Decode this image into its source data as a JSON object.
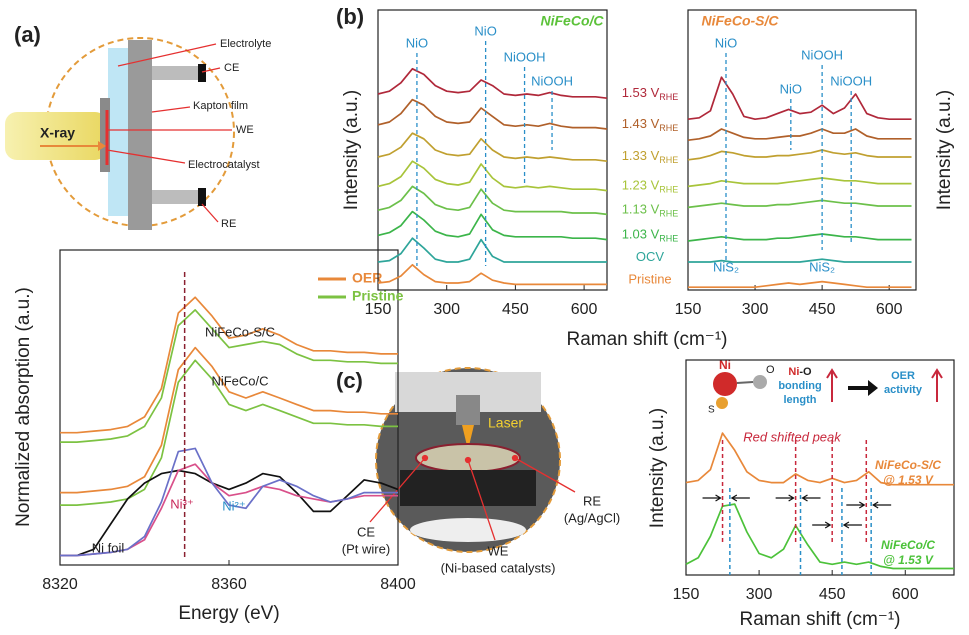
{
  "panels": [
    "(a)",
    "(b)",
    "(c)"
  ],
  "setup_a": [
    "Electrolyte",
    "CE",
    "Kapton film",
    "WE",
    "Electrocatalyst",
    "RE",
    "X-ray"
  ],
  "setup_c": [
    "Laser",
    "CE",
    "(Pt wire)",
    "WE",
    "(Ni-based catalysts)",
    "RE",
    "(Ag/AgCl)"
  ],
  "scheme_c": [
    "Ni",
    "O",
    "S",
    "Ni",
    "-O",
    "bonding",
    "length",
    "OER",
    "activity"
  ],
  "chart_data": [
    {
      "type": "line",
      "x_label": "Energy (eV)",
      "y_label": "Normalized absorption (a.u.)",
      "x": [
        8320,
        8324,
        8328,
        8332,
        8336,
        8340,
        8344,
        8348,
        8352,
        8356,
        8360,
        8364,
        8368,
        8372,
        8376,
        8380,
        8384,
        8388,
        8392,
        8396,
        8400
      ],
      "xlim": [
        8320,
        8400
      ],
      "xticks": [
        8320,
        8360,
        8400
      ],
      "ylim": [
        0,
        10
      ],
      "legend": [
        {
          "name": "OER",
          "color": "#e8883a"
        },
        {
          "name": "Pristine",
          "color": "#7cc242"
        }
      ],
      "reference_lines": [
        8349.5
      ],
      "series": [
        {
          "color": "#e8883a",
          "values": [
            4.2,
            4.2,
            4.25,
            4.3,
            4.4,
            4.7,
            5.6,
            8.0,
            8.5,
            7.9,
            7.2,
            7.3,
            7.5,
            7.3,
            7.0,
            6.8,
            6.8,
            6.75,
            6.75,
            6.7,
            6.7
          ]
        },
        {
          "color": "#7cc242",
          "values": [
            3.9,
            3.9,
            3.95,
            4.0,
            4.1,
            4.4,
            5.3,
            7.6,
            8.1,
            7.5,
            6.9,
            7.0,
            7.1,
            7.0,
            6.7,
            6.5,
            6.5,
            6.45,
            6.45,
            6.4,
            6.4
          ]
        },
        {
          "color": "#e8883a",
          "values": [
            2.3,
            2.3,
            2.35,
            2.4,
            2.5,
            2.8,
            3.8,
            6.2,
            6.9,
            6.3,
            5.5,
            5.3,
            5.5,
            5.3,
            5.1,
            4.9,
            4.9,
            4.85,
            4.85,
            4.8,
            4.8
          ]
        },
        {
          "color": "#7cc242",
          "values": [
            1.9,
            1.9,
            1.95,
            2.0,
            2.1,
            2.4,
            3.4,
            5.8,
            6.5,
            5.9,
            5.1,
            4.9,
            5.1,
            4.9,
            4.7,
            4.5,
            4.5,
            4.45,
            4.45,
            4.4,
            4.4
          ]
        },
        {
          "color": "#111111",
          "values": [
            0.3,
            0.3,
            0.5,
            1.3,
            2.1,
            2.6,
            2.9,
            3.0,
            2.9,
            2.6,
            2.4,
            2.6,
            2.9,
            2.8,
            2.3,
            1.7,
            1.7,
            2.2,
            2.7,
            2.6,
            2.4
          ]
        },
        {
          "color": "#d9508a",
          "values": [
            0.3,
            0.3,
            0.35,
            0.4,
            0.5,
            0.8,
            1.8,
            3.0,
            3.2,
            2.6,
            2.2,
            2.3,
            2.5,
            2.4,
            2.2,
            2.1,
            2.0,
            2.1,
            2.2,
            2.2,
            2.2
          ]
        },
        {
          "color": "#6a70c8",
          "values": [
            0.3,
            0.3,
            0.35,
            0.4,
            0.5,
            0.9,
            2.0,
            3.6,
            3.7,
            2.6,
            1.9,
            1.8,
            2.5,
            2.7,
            2.5,
            2.2,
            2.0,
            2.1,
            2.3,
            2.3,
            2.3
          ]
        }
      ],
      "annotations": [
        {
          "text": "NiFeCo-S/C",
          "color": "#222222"
        },
        {
          "text": "NiFeCo/C",
          "color": "#222222"
        },
        {
          "text": "Ni foil",
          "color": "#222222"
        },
        {
          "text": "Ni³⁺",
          "color": "#c8285a"
        },
        {
          "text": "Ni²⁺",
          "color": "#2a8fc8"
        }
      ]
    },
    {
      "type": "line",
      "title": "NiFeCo/C",
      "title_color": "#5cc23a",
      "y_label": "Intensity (a.u.)",
      "x_label": "Raman shift (cm⁻¹)",
      "x": [
        150,
        175,
        200,
        225,
        250,
        275,
        300,
        325,
        350,
        375,
        400,
        425,
        450,
        475,
        500,
        525,
        550,
        575,
        600,
        625,
        650
      ],
      "xlim": [
        150,
        650
      ],
      "xticks": [
        150,
        300,
        450,
        600
      ],
      "ylim": [
        0,
        10
      ],
      "series": [
        {
          "name": "Pristine",
          "color": "#e8883a",
          "values": [
            0.25,
            0.3,
            0.5,
            0.9,
            0.55,
            0.3,
            0.25,
            0.25,
            0.3,
            0.6,
            0.35,
            0.25,
            0.2,
            0.2,
            0.2,
            0.2,
            0.2,
            0.2,
            0.2,
            0.2,
            0.2
          ]
        },
        {
          "name": "OCV",
          "color": "#2ea59a",
          "values": [
            1.0,
            1.05,
            1.3,
            1.85,
            1.5,
            1.1,
            1.0,
            1.0,
            1.1,
            1.8,
            1.2,
            1.0,
            1.0,
            1.0,
            1.0,
            1.0,
            1.0,
            1.0,
            1.0,
            1.0,
            1.0
          ]
        },
        {
          "name": "1.03 V",
          "subscript": "RHE",
          "color": "#3cb54a",
          "values": [
            1.95,
            2.05,
            2.3,
            2.8,
            2.5,
            2.1,
            1.95,
            1.9,
            2.0,
            2.7,
            2.15,
            1.95,
            1.9,
            1.9,
            1.9,
            1.9,
            1.9,
            1.85,
            1.85,
            1.85,
            1.8
          ]
        },
        {
          "name": "1.13 V",
          "subscript": "RHE",
          "color": "#6cc04a",
          "values": [
            2.85,
            2.95,
            3.2,
            3.7,
            3.45,
            3.05,
            2.9,
            2.85,
            2.95,
            3.6,
            3.1,
            2.85,
            2.8,
            2.8,
            2.8,
            2.8,
            2.8,
            2.75,
            2.75,
            2.75,
            2.7
          ]
        },
        {
          "name": "1.23 V",
          "subscript": "RHE",
          "color": "#a8c43a",
          "values": [
            3.7,
            3.8,
            4.05,
            4.6,
            4.35,
            3.95,
            3.8,
            3.75,
            3.85,
            4.5,
            4.0,
            3.7,
            3.65,
            3.7,
            3.65,
            3.7,
            3.65,
            3.6,
            3.6,
            3.6,
            3.55
          ]
        },
        {
          "name": "1.33 V",
          "subscript": "RHE",
          "color": "#c0a030",
          "values": [
            4.75,
            4.85,
            5.1,
            5.6,
            5.4,
            5.0,
            4.85,
            4.8,
            4.85,
            5.4,
            5.0,
            4.75,
            4.7,
            4.75,
            4.7,
            4.75,
            4.7,
            4.65,
            4.65,
            4.65,
            4.6
          ]
        },
        {
          "name": "1.43 V",
          "subscript": "RHE",
          "color": "#b0602a",
          "values": [
            5.9,
            6.0,
            6.3,
            6.8,
            6.6,
            6.2,
            6.0,
            5.95,
            6.0,
            6.5,
            6.2,
            5.9,
            5.85,
            5.9,
            5.85,
            5.95,
            5.85,
            5.8,
            5.8,
            5.8,
            5.75
          ]
        },
        {
          "name": "1.53 V",
          "subscript": "RHE",
          "color": "#b0283a",
          "values": [
            7.0,
            7.1,
            7.4,
            7.9,
            7.7,
            7.3,
            7.1,
            7.05,
            7.1,
            7.5,
            7.3,
            7.0,
            6.95,
            7.0,
            6.95,
            7.05,
            6.95,
            6.9,
            6.9,
            6.9,
            6.85
          ]
        }
      ],
      "peaks": [
        {
          "text": "NiO",
          "x": 235
        },
        {
          "text": "NiO",
          "x": 385
        },
        {
          "text": "NiOOH",
          "x": 470
        },
        {
          "text": "NiOOH",
          "x": 530
        }
      ]
    },
    {
      "type": "line",
      "title": "NiFeCo-S/C",
      "title_color": "#e8883a",
      "y_label": "Intensity (a.u.)",
      "x": [
        150,
        175,
        200,
        225,
        250,
        275,
        300,
        325,
        350,
        375,
        400,
        425,
        450,
        475,
        500,
        525,
        550,
        575,
        600,
        625,
        650
      ],
      "xlim": [
        150,
        660
      ],
      "xticks": [
        150,
        300,
        450,
        600
      ],
      "ylim": [
        0,
        10
      ],
      "series": [
        {
          "color": "#e8883a",
          "values": [
            0.1,
            0.1,
            0.1,
            0.1,
            0.1,
            0.1,
            0.1,
            0.15,
            0.2,
            0.25,
            0.2,
            0.25,
            0.3,
            0.25,
            0.2,
            0.15,
            0.1,
            0.1,
            0.1,
            0.1,
            0.1
          ]
        },
        {
          "color": "#2ea59a",
          "values": [
            1.0,
            1.0,
            1.0,
            1.05,
            1.0,
            1.0,
            1.0,
            1.0,
            1.0,
            1.0,
            1.0,
            1.05,
            1.1,
            1.05,
            1.0,
            1.0,
            1.0,
            1.0,
            1.0,
            1.0,
            1.0
          ]
        },
        {
          "color": "#3cb54a",
          "values": [
            1.75,
            1.8,
            1.85,
            1.9,
            1.85,
            1.8,
            1.8,
            1.8,
            1.85,
            1.85,
            1.9,
            1.95,
            2.0,
            1.95,
            1.9,
            1.9,
            1.85,
            1.8,
            1.8,
            1.8,
            1.8
          ]
        },
        {
          "color": "#6cc04a",
          "values": [
            2.95,
            3.0,
            3.05,
            3.1,
            3.05,
            3.0,
            3.0,
            3.0,
            3.05,
            3.05,
            3.1,
            3.15,
            3.2,
            3.15,
            3.1,
            3.1,
            3.05,
            3.0,
            3.0,
            3.0,
            3.0
          ]
        },
        {
          "color": "#a8c43a",
          "values": [
            3.7,
            3.75,
            3.8,
            3.9,
            3.85,
            3.8,
            3.8,
            3.8,
            3.8,
            3.85,
            3.9,
            3.95,
            4.0,
            3.95,
            3.9,
            3.9,
            3.85,
            3.8,
            3.8,
            3.8,
            3.8
          ]
        },
        {
          "color": "#c0a030",
          "values": [
            4.65,
            4.7,
            4.8,
            4.95,
            4.9,
            4.8,
            4.75,
            4.75,
            4.8,
            4.8,
            4.85,
            4.9,
            5.0,
            4.9,
            4.85,
            4.9,
            4.8,
            4.75,
            4.75,
            4.75,
            4.75
          ]
        },
        {
          "color": "#b0602a",
          "values": [
            5.35,
            5.4,
            5.5,
            5.75,
            5.6,
            5.45,
            5.4,
            5.4,
            5.45,
            5.5,
            5.5,
            5.6,
            5.75,
            5.6,
            5.6,
            5.75,
            5.5,
            5.4,
            5.4,
            5.4,
            5.4
          ]
        },
        {
          "color": "#b0283a",
          "values": [
            6.1,
            6.15,
            6.4,
            7.6,
            7.0,
            6.2,
            6.1,
            6.15,
            6.3,
            6.45,
            6.3,
            6.35,
            6.6,
            6.3,
            6.5,
            7.0,
            6.3,
            6.15,
            6.1,
            6.1,
            6.1
          ]
        }
      ],
      "peaks": [
        {
          "text": "NiO",
          "x": 235
        },
        {
          "text": "NiO",
          "x": 380
        },
        {
          "text": "NiOOH",
          "x": 450
        },
        {
          "text": "NiOOH",
          "x": 515
        },
        {
          "text": "NiS₂",
          "x": 235
        },
        {
          "text": "NiS₂",
          "x": 450
        }
      ]
    },
    {
      "type": "line",
      "y_label": "Intensity (a.u.)",
      "x_label": "Raman shift (cm⁻¹)",
      "annotation": "Red shifted peak",
      "x": [
        150,
        175,
        200,
        225,
        250,
        275,
        300,
        325,
        350,
        375,
        400,
        425,
        450,
        475,
        500,
        525,
        550,
        575,
        600,
        625,
        650,
        675,
        700
      ],
      "xlim": [
        150,
        700
      ],
      "xticks": [
        150,
        300,
        450,
        600
      ],
      "ylim": [
        0,
        10
      ],
      "series": [
        {
          "label": [
            "NiFeCo-S/C",
            "@ 1.53 V"
          ],
          "color": "#e8883a",
          "values": [
            4.3,
            4.4,
            4.9,
            6.6,
            5.8,
            4.8,
            4.4,
            4.3,
            4.3,
            4.7,
            4.4,
            4.3,
            4.5,
            4.3,
            4.4,
            4.8,
            4.3,
            4.2,
            4.2,
            4.2,
            4.2,
            4.2,
            4.2
          ]
        },
        {
          "label": [
            "NiFeCo/C",
            "@ 1.53 V"
          ],
          "color": "#4cc23a",
          "values": [
            0.5,
            0.8,
            1.8,
            3.2,
            3.3,
            2.0,
            1.0,
            0.8,
            1.2,
            2.3,
            1.4,
            0.6,
            0.5,
            0.6,
            0.5,
            0.6,
            0.4,
            0.3,
            0.3,
            0.3,
            0.3,
            0.3,
            0.3
          ]
        }
      ],
      "reference_lines": [
        {
          "x": 225,
          "color": "#c8283c"
        },
        {
          "x": 375,
          "color": "#c8283c"
        },
        {
          "x": 450,
          "color": "#c8283c"
        },
        {
          "x": 520,
          "color": "#c8283c"
        },
        {
          "x": 240,
          "color": "#2a8fc8"
        },
        {
          "x": 385,
          "color": "#2a8fc8"
        },
        {
          "x": 470,
          "color": "#2a8fc8"
        },
        {
          "x": 530,
          "color": "#2a8fc8"
        }
      ]
    }
  ]
}
